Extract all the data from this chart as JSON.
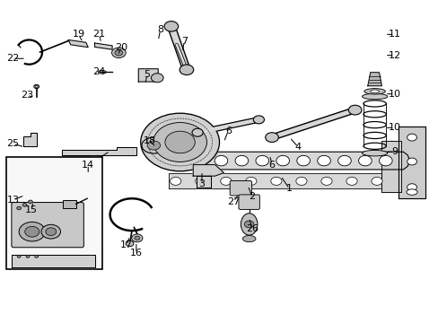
{
  "background_color": "#ffffff",
  "figsize": [
    4.89,
    3.6
  ],
  "dpi": 100,
  "line_color": "#000000",
  "part_fill": "#e0e0e0",
  "label_positions": {
    "1": [
      0.66,
      0.415,
      0.64,
      0.455
    ],
    "2": [
      0.575,
      0.39,
      0.565,
      0.425
    ],
    "3": [
      0.46,
      0.43,
      0.46,
      0.47
    ],
    "4": [
      0.68,
      0.545,
      0.66,
      0.575
    ],
    "5": [
      0.335,
      0.77,
      0.33,
      0.74
    ],
    "6a": [
      0.52,
      0.595,
      0.51,
      0.56
    ],
    "6b": [
      0.62,
      0.49,
      0.615,
      0.52
    ],
    "7": [
      0.42,
      0.875,
      0.415,
      0.84
    ],
    "8": [
      0.365,
      0.91,
      0.36,
      0.875
    ],
    "9": [
      0.9,
      0.53,
      0.878,
      0.53
    ],
    "10a": [
      0.9,
      0.605,
      0.878,
      0.605
    ],
    "10b": [
      0.9,
      0.71,
      0.878,
      0.71
    ],
    "11": [
      0.9,
      0.895,
      0.878,
      0.895
    ],
    "12": [
      0.9,
      0.83,
      0.878,
      0.83
    ],
    "13": [
      0.028,
      0.38,
      0.055,
      0.395
    ],
    "14": [
      0.2,
      0.49,
      0.2,
      0.46
    ],
    "15": [
      0.07,
      0.35,
      0.075,
      0.375
    ],
    "16": [
      0.31,
      0.215,
      0.31,
      0.25
    ],
    "17": [
      0.288,
      0.24,
      0.295,
      0.268
    ],
    "18": [
      0.34,
      0.565,
      0.355,
      0.545
    ],
    "19": [
      0.178,
      0.895,
      0.188,
      0.87
    ],
    "20": [
      0.275,
      0.855,
      0.268,
      0.83
    ],
    "21": [
      0.225,
      0.895,
      0.23,
      0.868
    ],
    "22": [
      0.028,
      0.82,
      0.058,
      0.82
    ],
    "23": [
      0.06,
      0.705,
      0.078,
      0.7
    ],
    "24": [
      0.225,
      0.78,
      0.245,
      0.775
    ],
    "25": [
      0.028,
      0.555,
      0.055,
      0.545
    ],
    "26": [
      0.575,
      0.29,
      0.568,
      0.325
    ],
    "27": [
      0.532,
      0.375,
      0.545,
      0.4
    ]
  }
}
